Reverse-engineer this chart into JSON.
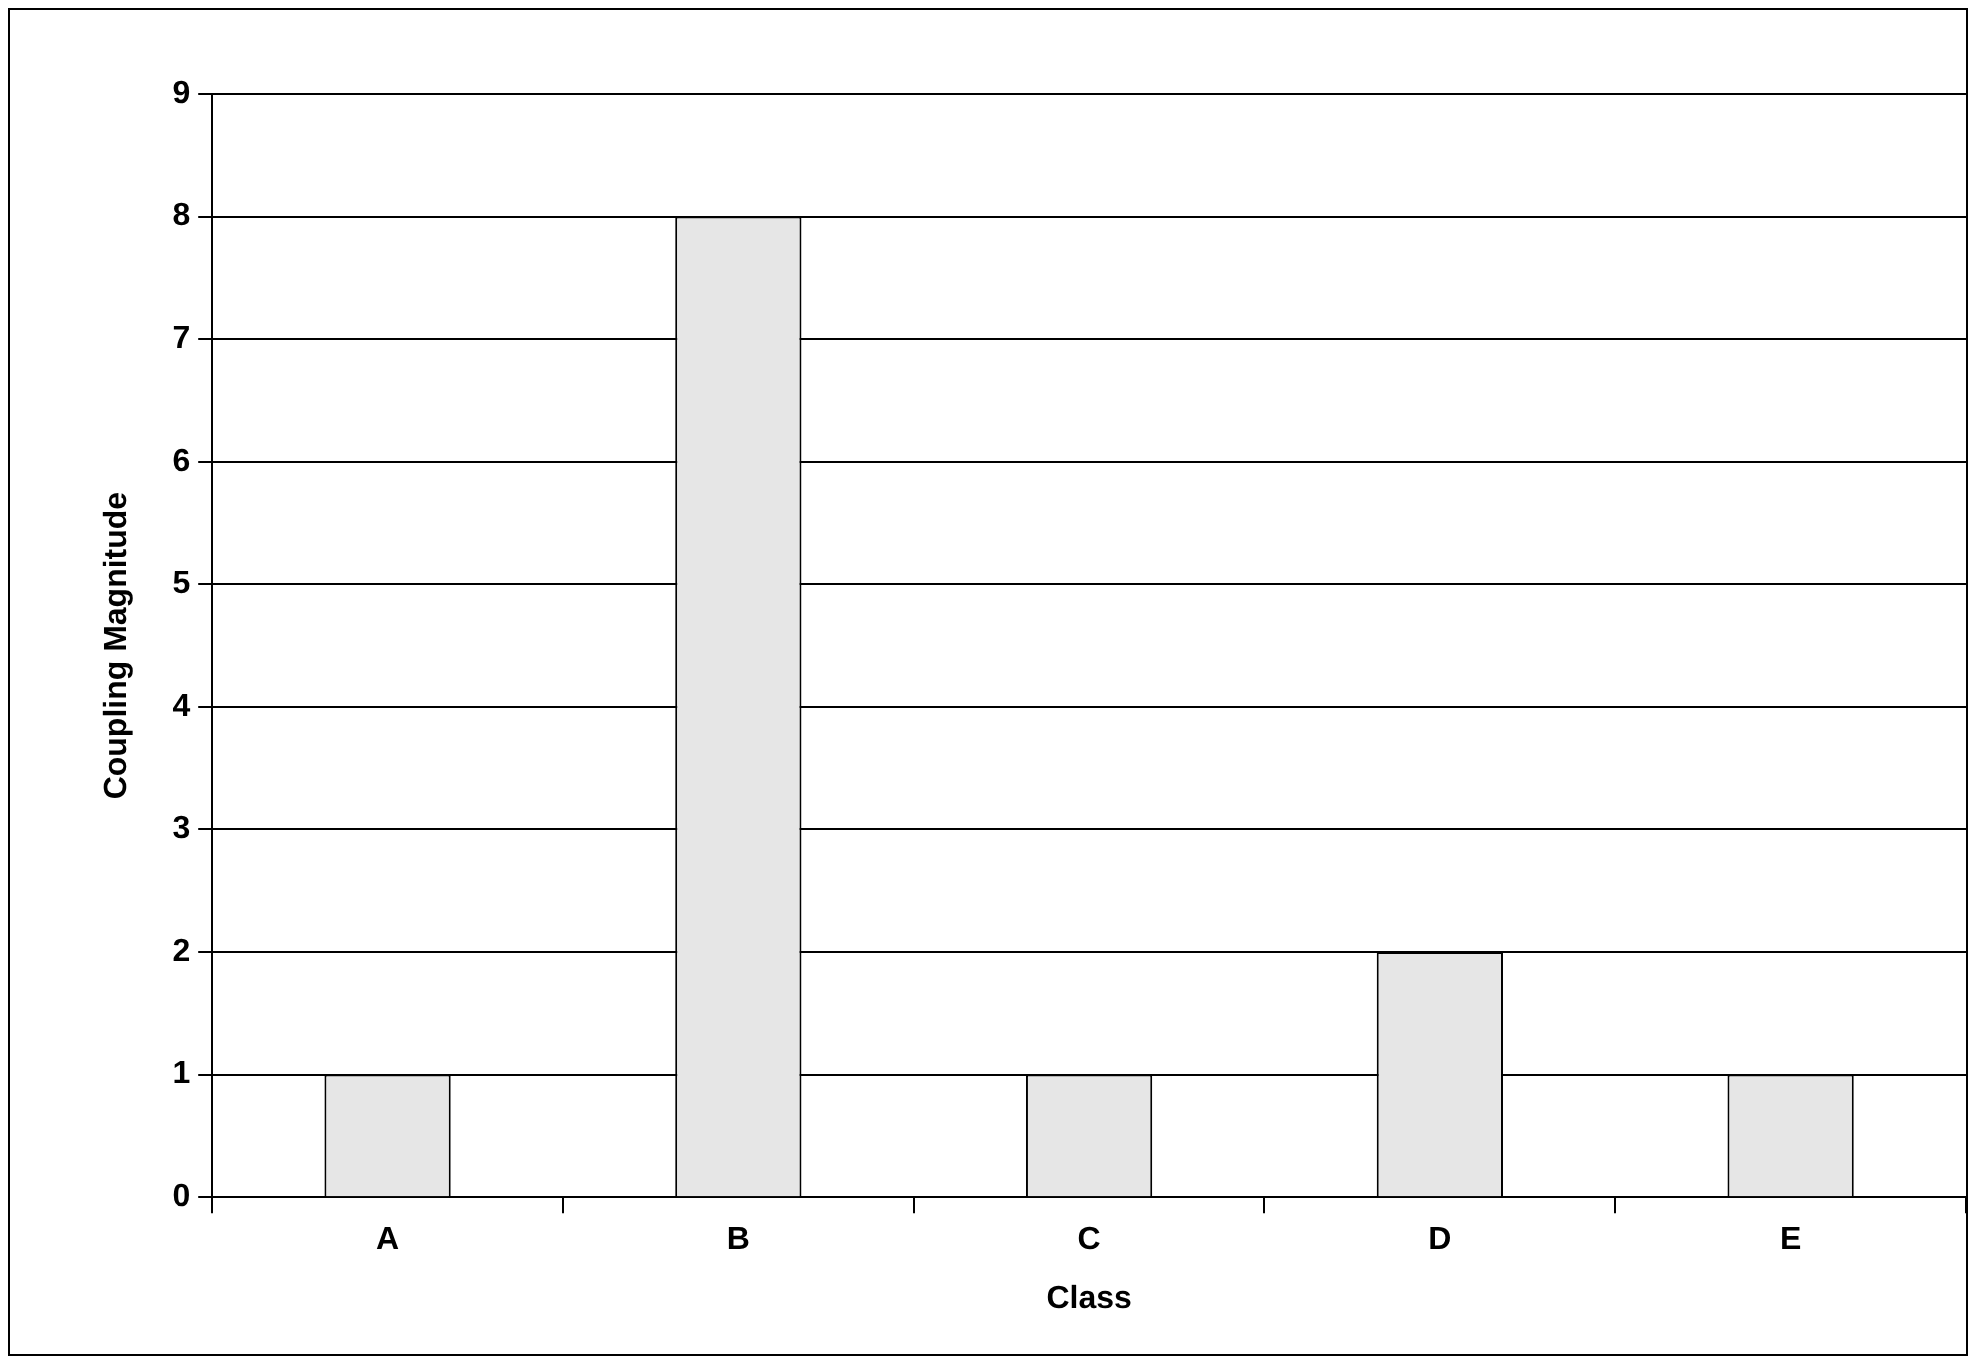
{
  "chart_data": {
    "type": "bar",
    "xlabel": "Class",
    "ylabel": "Coupling Magnitude",
    "categories": [
      "A",
      "B",
      "C",
      "D",
      "E"
    ],
    "values": [
      1,
      8,
      1,
      2,
      1
    ],
    "color": "#e6e6e6",
    "ylim": [
      0,
      9
    ],
    "yticks": [
      0,
      1,
      2,
      3,
      4,
      5,
      6,
      7,
      8,
      9
    ],
    "grid": "y",
    "legend": false
  }
}
